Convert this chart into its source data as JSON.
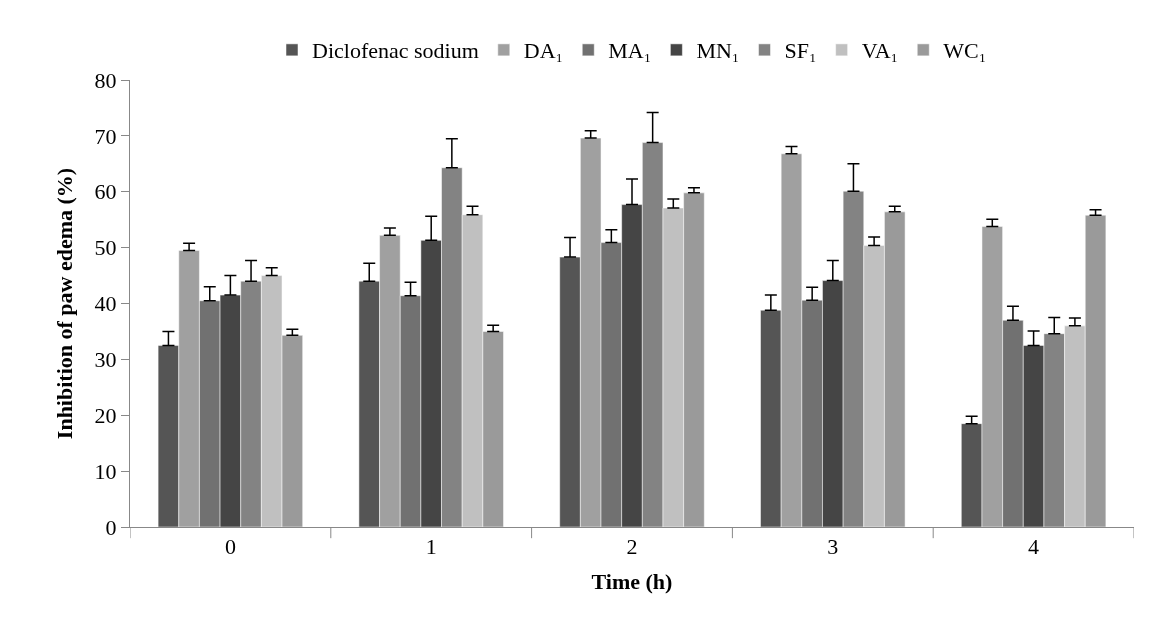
{
  "chart_data": {
    "type": "bar",
    "xlabel": "Time (h)",
    "ylabel": "Inhibition of paw edema (%)",
    "categories": [
      "0",
      "1",
      "2",
      "3",
      "4"
    ],
    "series": [
      {
        "name": "Diclofenac sodium",
        "color": "#555555",
        "values": [
          32.5,
          44,
          48.3,
          38.8,
          18.5
        ],
        "errors": [
          [
            32.5,
            35
          ],
          [
            44,
            47.2
          ],
          [
            48.3,
            51.8
          ],
          [
            38.8,
            41.5
          ],
          [
            18.5,
            19.8
          ]
        ]
      },
      {
        "name": "DA₁",
        "color": "#a0a0a0",
        "values": [
          49.5,
          52.2,
          69.6,
          66.8,
          53.8
        ],
        "errors": [
          [
            49.5,
            50.8
          ],
          [
            52.2,
            53.5
          ],
          [
            69.6,
            70.9
          ],
          [
            66.8,
            68.1
          ],
          [
            53.8,
            55.1
          ]
        ]
      },
      {
        "name": "MA₁",
        "color": "#717171",
        "values": [
          40.5,
          41.4,
          50.9,
          40.6,
          37
        ],
        "errors": [
          [
            40.5,
            43
          ],
          [
            41.4,
            43.8
          ],
          [
            50.9,
            53.2
          ],
          [
            40.6,
            42.9
          ],
          [
            37,
            39.5
          ]
        ]
      },
      {
        "name": "MN₁",
        "color": "#454545",
        "values": [
          41.5,
          51.3,
          57.7,
          44.1,
          32.5
        ],
        "errors": [
          [
            41.5,
            45
          ],
          [
            51.3,
            55.6
          ],
          [
            57.7,
            62.3
          ],
          [
            44.1,
            47.7
          ],
          [
            32.5,
            35.1
          ]
        ]
      },
      {
        "name": "SF₁",
        "color": "#838383",
        "values": [
          44,
          64.3,
          68.8,
          60.1,
          34.6
        ],
        "errors": [
          [
            44,
            47.7
          ],
          [
            64.3,
            69.5
          ],
          [
            68.8,
            74.2
          ],
          [
            60.1,
            65
          ],
          [
            34.6,
            37.5
          ]
        ]
      },
      {
        "name": "VA₁",
        "color": "#c0c0c0",
        "values": [
          45,
          55.9,
          57.1,
          50.4,
          36
        ],
        "errors": [
          [
            45,
            46.4
          ],
          [
            55.9,
            57.4
          ],
          [
            57.1,
            58.7
          ],
          [
            50.4,
            51.9
          ],
          [
            36,
            37.4
          ]
        ]
      },
      {
        "name": "WC₁",
        "color": "#9a9a9a",
        "values": [
          34.3,
          35,
          59.8,
          56.4,
          55.8
        ],
        "errors": [
          [
            34.3,
            35.4
          ],
          [
            35,
            36.1
          ],
          [
            59.8,
            60.7
          ],
          [
            56.4,
            57.4
          ],
          [
            55.8,
            56.8
          ]
        ]
      }
    ],
    "ylim": [
      0,
      80
    ],
    "yticks": [
      0,
      10,
      20,
      30,
      40,
      50,
      60,
      70,
      80
    ],
    "legend": "top"
  }
}
